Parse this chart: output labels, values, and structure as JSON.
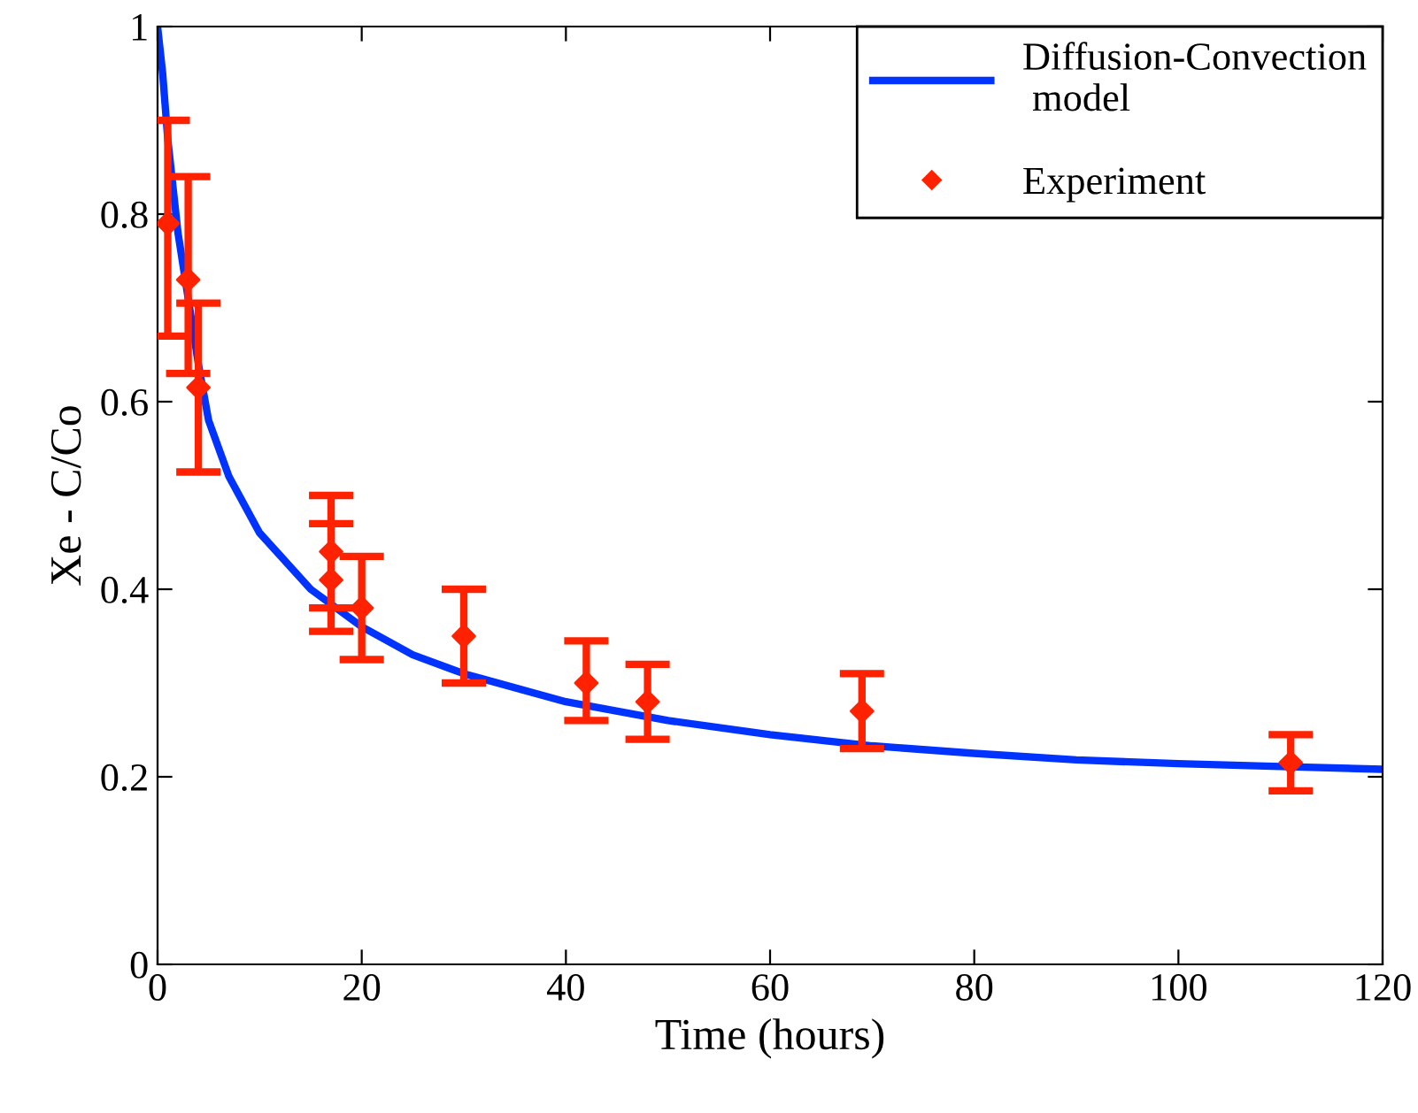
{
  "chart_data": {
    "type": "line",
    "xlabel": "Time (hours)",
    "ylabel": "Xe - C/Co",
    "xlim": [
      0,
      120
    ],
    "ylim": [
      0,
      1
    ],
    "xticks": [
      0,
      20,
      40,
      60,
      80,
      100,
      120
    ],
    "yticks": [
      0,
      0.2,
      0.4,
      0.6,
      0.8,
      1
    ],
    "grid": false,
    "legend": "top right",
    "series": [
      {
        "name": "Diffusion-Convection\n model",
        "color": "#0033ff",
        "line_style": "solid",
        "marker": "none",
        "x": [
          0,
          0.5,
          1,
          2,
          3,
          4,
          5,
          7,
          10,
          15,
          20,
          25,
          30,
          40,
          50,
          60,
          70,
          80,
          90,
          100,
          110,
          120
        ],
        "values": [
          1.0,
          0.95,
          0.88,
          0.78,
          0.71,
          0.64,
          0.58,
          0.52,
          0.46,
          0.4,
          0.36,
          0.33,
          0.31,
          0.28,
          0.26,
          0.245,
          0.233,
          0.225,
          0.218,
          0.214,
          0.211,
          0.208
        ]
      },
      {
        "name": "Experiment",
        "type": "scatter",
        "color": "#ff2200",
        "marker": "diamond",
        "x": [
          1,
          3,
          4,
          17,
          17,
          20,
          30,
          42,
          48,
          69,
          111
        ],
        "values": [
          0.79,
          0.73,
          0.615,
          0.44,
          0.41,
          0.38,
          0.35,
          0.3,
          0.28,
          0.27,
          0.215
        ],
        "errors": [
          [
            0.67,
            0.9
          ],
          [
            0.63,
            0.84
          ],
          [
            0.525,
            0.705
          ],
          [
            0.38,
            0.5
          ],
          [
            0.355,
            0.47
          ],
          [
            0.325,
            0.435
          ],
          [
            0.3,
            0.4
          ],
          [
            0.26,
            0.345
          ],
          [
            0.24,
            0.32
          ],
          [
            0.23,
            0.31
          ],
          [
            0.185,
            0.245
          ]
        ]
      }
    ]
  }
}
